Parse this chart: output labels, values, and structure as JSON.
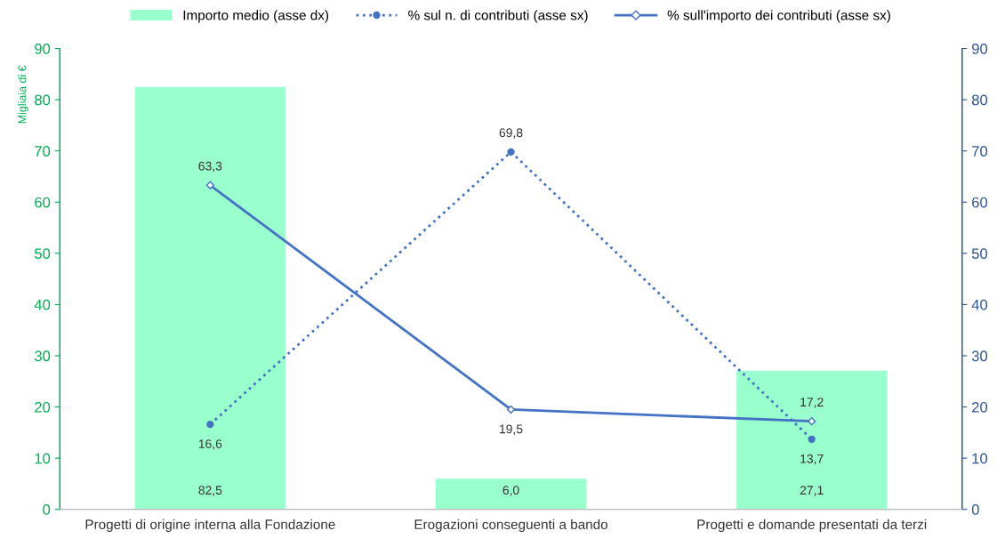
{
  "chart_data": {
    "type": "bar",
    "ylabel": "Migliaia di €",
    "categories": [
      "Progetti di origine interna alla Fondazione",
      "Erogazioni conseguenti a bando",
      "Progetti e domande presentati da terzi"
    ],
    "series": [
      {
        "name": "Importo medio (asse dx)",
        "color": "#99ffcc",
        "values": [
          82.5,
          6.0,
          27.1
        ],
        "value_labels": [
          "82,5",
          "6,0",
          "27,1"
        ]
      },
      {
        "name": "% sul n. di contributi (asse sx)",
        "type": "line",
        "color": "#4472c4",
        "marker": "circle",
        "line_style": "dotted",
        "values": [
          16.6,
          69.8,
          13.7
        ],
        "value_labels": [
          "16,6",
          "69,8",
          "13,7"
        ]
      },
      {
        "name": "% sull'importo dei contributi (asse sx)",
        "type": "line",
        "color": "#4472c4",
        "marker": "diamond",
        "line_style": "solid",
        "values": [
          63.3,
          19.5,
          17.2
        ],
        "value_labels": [
          "63,3",
          "19,5",
          "17,2"
        ]
      }
    ],
    "ylim": [
      0,
      90
    ],
    "yticks": [
      0,
      10,
      20,
      30,
      40,
      50,
      60,
      70,
      80,
      90
    ],
    "y2lim": [
      0,
      90
    ],
    "y2ticks": [
      0,
      10,
      20,
      30,
      40,
      50,
      60,
      70,
      80,
      90
    ],
    "legend": "top",
    "grid": false
  }
}
